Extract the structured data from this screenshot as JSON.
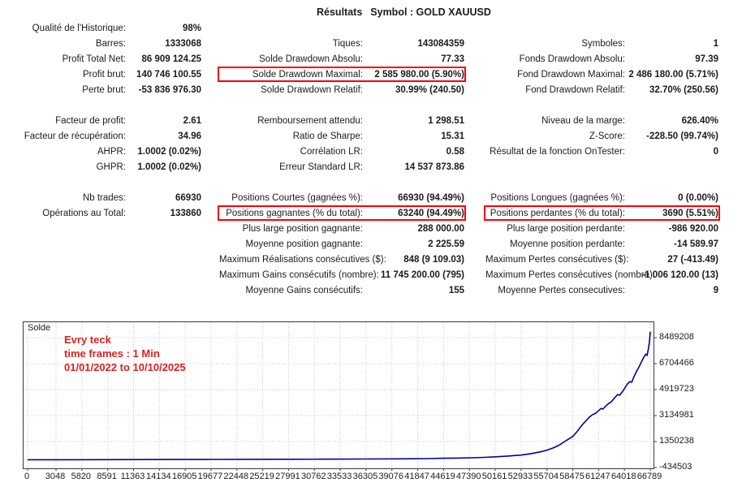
{
  "title": {
    "results": "Résultats",
    "symbol": "Symbol : GOLD XAUUSD"
  },
  "colors": {
    "highlight_box": "#ff0000",
    "annotation_red": "#e01f1f",
    "line_blue": "#0000a0",
    "grid_gray": "#c9c9c9"
  },
  "stats": {
    "rows": [
      {
        "c1": {
          "label": "Qualité de l'Historique:",
          "value": "98%"
        },
        "c2": null,
        "c3": null
      },
      {
        "c1": {
          "label": "Barres:",
          "value": "1333068"
        },
        "c2": {
          "label": "Tiques:",
          "value": "143084359"
        },
        "c3": {
          "label": "Symboles:",
          "value": "1"
        }
      },
      {
        "c1": {
          "label": "Profit Total Net:",
          "value": "86 909 124.25"
        },
        "c2": {
          "label": "Solde Drawdown Absolu:",
          "value": "77.33"
        },
        "c3": {
          "label": "Fonds Drawdown Absolu:",
          "value": "97.39"
        }
      },
      {
        "c1": {
          "label": "Profit brut:",
          "value": "140 746 100.55"
        },
        "c2": {
          "label": "Solde Drawdown Maximal:",
          "value": "2 585 980.00 (5.90%)",
          "boxed": true
        },
        "c3": {
          "label": "Fond Drawdown Maximal:",
          "value": "2 486 180.00 (5.71%)"
        }
      },
      {
        "c1": {
          "label": "Perte brut:",
          "value": "-53 836 976.30"
        },
        "c2": {
          "label": "Solde Drawdown Relatif:",
          "value": "30.99% (240.50)"
        },
        "c3": {
          "label": "Fond Drawdown Relatif:",
          "value": "32.70% (250.56)"
        }
      },
      {
        "spacer": true
      },
      {
        "c1": {
          "label": "Facteur de profit:",
          "value": "2.61"
        },
        "c2": {
          "label": "Remboursement attendu:",
          "value": "1 298.51"
        },
        "c3": {
          "label": "Niveau de la marge:",
          "value": "626.40%"
        }
      },
      {
        "c1": {
          "label": "Facteur de récupération:",
          "value": "34.96"
        },
        "c2": {
          "label": "Ratio de Sharpe:",
          "value": "15.31"
        },
        "c3": {
          "label": "Z-Score:",
          "value": "-228.50 (99.74%)"
        }
      },
      {
        "c1": {
          "label": "AHPR:",
          "value": "1.0002 (0.02%)"
        },
        "c2": {
          "label": "Corrélation LR:",
          "value": "0.58"
        },
        "c3": {
          "label": "Résultat de la fonction OnTester:",
          "value": "0"
        }
      },
      {
        "c1": {
          "label": "GHPR:",
          "value": "1.0002 (0.02%)"
        },
        "c2": {
          "label": "Erreur Standard LR:",
          "value": "14 537 873.86"
        },
        "c3": null
      },
      {
        "spacer": true
      },
      {
        "c1": {
          "label": "Nb trades:",
          "value": "66930"
        },
        "c2": {
          "label": "Positions Courtes (gagnées %):",
          "value": "66930 (94.49%)"
        },
        "c3": {
          "label": "Positions Longues (gagnées %):",
          "value": "0 (0.00%)"
        }
      },
      {
        "c1": {
          "label": "Opérations au Total:",
          "value": "133860"
        },
        "c2": {
          "label": "Positions gagnantes (% du total):",
          "value": "63240 (94.49%)",
          "boxed": true
        },
        "c3": {
          "label": "Positions perdantes (% du total):",
          "value": "3690 (5.51%)",
          "boxed": true
        }
      },
      {
        "c1": null,
        "c2": {
          "label": "Plus large position gagnante:",
          "value": "288 000.00"
        },
        "c3": {
          "label": "Plus large position perdante:",
          "value": "-986 920.00"
        }
      },
      {
        "c1": null,
        "c2": {
          "label": "Moyenne position gagnante:",
          "value": "2 225.59"
        },
        "c3": {
          "label": "Moyenne position perdante:",
          "value": "-14 589.97"
        }
      },
      {
        "c1": null,
        "c2": {
          "label": "Maximum Réalisations consécutives ($):",
          "value": "848 (9 109.03)"
        },
        "c3": {
          "label": "Maximum Pertes consécutives ($):",
          "value": "27 (-413.49)"
        }
      },
      {
        "c1": null,
        "c2": {
          "label": "Maximum Gains consécutifs (nombre):",
          "value": "11 745 200.00 (795)"
        },
        "c3": {
          "label": "Maximum Pertes consécutives (nombre):",
          "value": "-1 006 120.00 (13)"
        }
      },
      {
        "c1": null,
        "c2": {
          "label": "Moyenne Gains consécutifs:",
          "value": "155"
        },
        "c3": {
          "label": "Moyenne Pertes consecutives:",
          "value": "9"
        }
      }
    ]
  },
  "chart_data": {
    "type": "line",
    "title": "Solde",
    "annotation_lines": [
      "Evry teck",
      "time frames : 1 Min",
      "01/01/2022 to 10/10/2025"
    ],
    "xlabel": "",
    "ylabel": "Solde",
    "x_ticks": [
      0,
      3048,
      5820,
      8591,
      11363,
      14134,
      16905,
      19677,
      22448,
      25219,
      27991,
      30762,
      33533,
      36305,
      39076,
      41847,
      44619,
      47390,
      50161,
      52933,
      55704,
      58475,
      61247,
      64018,
      66789
    ],
    "y_ticks": [
      8489208,
      6704466,
      4919723,
      3134981,
      1350238,
      -434503
    ],
    "x_range": [
      0,
      66789
    ],
    "y_range": [
      -490276,
      9548897
    ],
    "grid": true,
    "legend_position": "none",
    "series": [
      {
        "name": "Solde",
        "points": [
          [
            0,
            100000
          ],
          [
            4000,
            103000
          ],
          [
            8000,
            107000
          ],
          [
            12000,
            111000
          ],
          [
            16000,
            116000
          ],
          [
            20000,
            121000
          ],
          [
            24000,
            127000
          ],
          [
            28000,
            134000
          ],
          [
            32000,
            142000
          ],
          [
            36000,
            152000
          ],
          [
            40000,
            165000
          ],
          [
            43000,
            178000
          ],
          [
            44600,
            200000
          ],
          [
            46000,
            215000
          ],
          [
            47500,
            235000
          ],
          [
            49000,
            265000
          ],
          [
            50200,
            300000
          ],
          [
            51500,
            350000
          ],
          [
            52900,
            420000
          ],
          [
            54000,
            520000
          ],
          [
            55000,
            640000
          ],
          [
            55700,
            760000
          ],
          [
            56400,
            920000
          ],
          [
            57000,
            1100000
          ],
          [
            57600,
            1350000
          ],
          [
            58100,
            1550000
          ],
          [
            58475,
            1700000
          ],
          [
            58900,
            2000000
          ],
          [
            59300,
            2350000
          ],
          [
            59700,
            2650000
          ],
          [
            60000,
            2850000
          ],
          [
            60300,
            3050000
          ],
          [
            60600,
            3200000
          ],
          [
            60900,
            3280000
          ],
          [
            61247,
            3480000
          ],
          [
            61500,
            3620000
          ],
          [
            61700,
            3580000
          ],
          [
            62000,
            3780000
          ],
          [
            62300,
            3950000
          ],
          [
            62600,
            4080000
          ],
          [
            63000,
            4380000
          ],
          [
            63300,
            4580000
          ],
          [
            63500,
            4530000
          ],
          [
            63800,
            4780000
          ],
          [
            64018,
            4980000
          ],
          [
            64300,
            5280000
          ],
          [
            64600,
            5480000
          ],
          [
            64800,
            5430000
          ],
          [
            65000,
            5750000
          ],
          [
            65300,
            6150000
          ],
          [
            65600,
            6500000
          ],
          [
            65900,
            6900000
          ],
          [
            66100,
            7150000
          ],
          [
            66300,
            7350000
          ],
          [
            66450,
            7280000
          ],
          [
            66600,
            7750000
          ],
          [
            66700,
            8200000
          ],
          [
            66789,
            8900000
          ]
        ]
      }
    ]
  }
}
